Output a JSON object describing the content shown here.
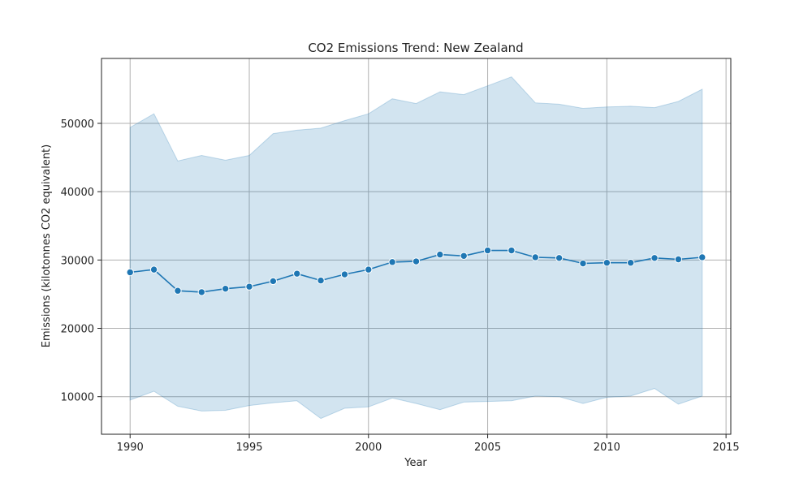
{
  "chart_data": {
    "type": "line",
    "title": "CO2 Emissions Trend: New Zealand",
    "xlabel": "Year",
    "ylabel": "Emissions (kilotonnes CO2 equivalent)",
    "xlim": [
      1988.8,
      2015.2
    ],
    "ylim": [
      4500,
      59500
    ],
    "x_ticks": [
      1990,
      1995,
      2000,
      2005,
      2010,
      2015
    ],
    "y_ticks": [
      10000,
      20000,
      30000,
      40000,
      50000
    ],
    "grid": true,
    "legend": "none",
    "colors": {
      "line": "#1f77b4",
      "band": "#1f77b4"
    },
    "series": [
      {
        "x": [
          1990,
          1991,
          1992,
          1993,
          1994,
          1995,
          1996,
          1997,
          1998,
          1999,
          2000,
          2001,
          2002,
          2003,
          2004,
          2005,
          2006,
          2007,
          2008,
          2009,
          2010,
          2011,
          2012,
          2013,
          2014
        ],
        "y": [
          28200,
          28600,
          25500,
          25300,
          25800,
          26100,
          26900,
          28000,
          27000,
          27900,
          28600,
          29700,
          29800,
          30800,
          30600,
          31400,
          31400,
          30400,
          30300,
          29500,
          29600,
          29600,
          30300,
          30100,
          30400
        ],
        "lower": [
          9500,
          10800,
          8600,
          7900,
          8000,
          8700,
          9100,
          9400,
          6800,
          8300,
          8500,
          9800,
          9000,
          8100,
          9200,
          9300,
          9400,
          10100,
          10000,
          9000,
          9900,
          10100,
          11200,
          8900,
          10100
        ],
        "upper": [
          49400,
          51400,
          44500,
          45300,
          44600,
          45300,
          48500,
          49000,
          49300,
          50400,
          51400,
          53600,
          52900,
          54600,
          54200,
          55500,
          56800,
          53000,
          52800,
          52200,
          52400,
          52500,
          52300,
          53200,
          55000
        ]
      }
    ]
  }
}
